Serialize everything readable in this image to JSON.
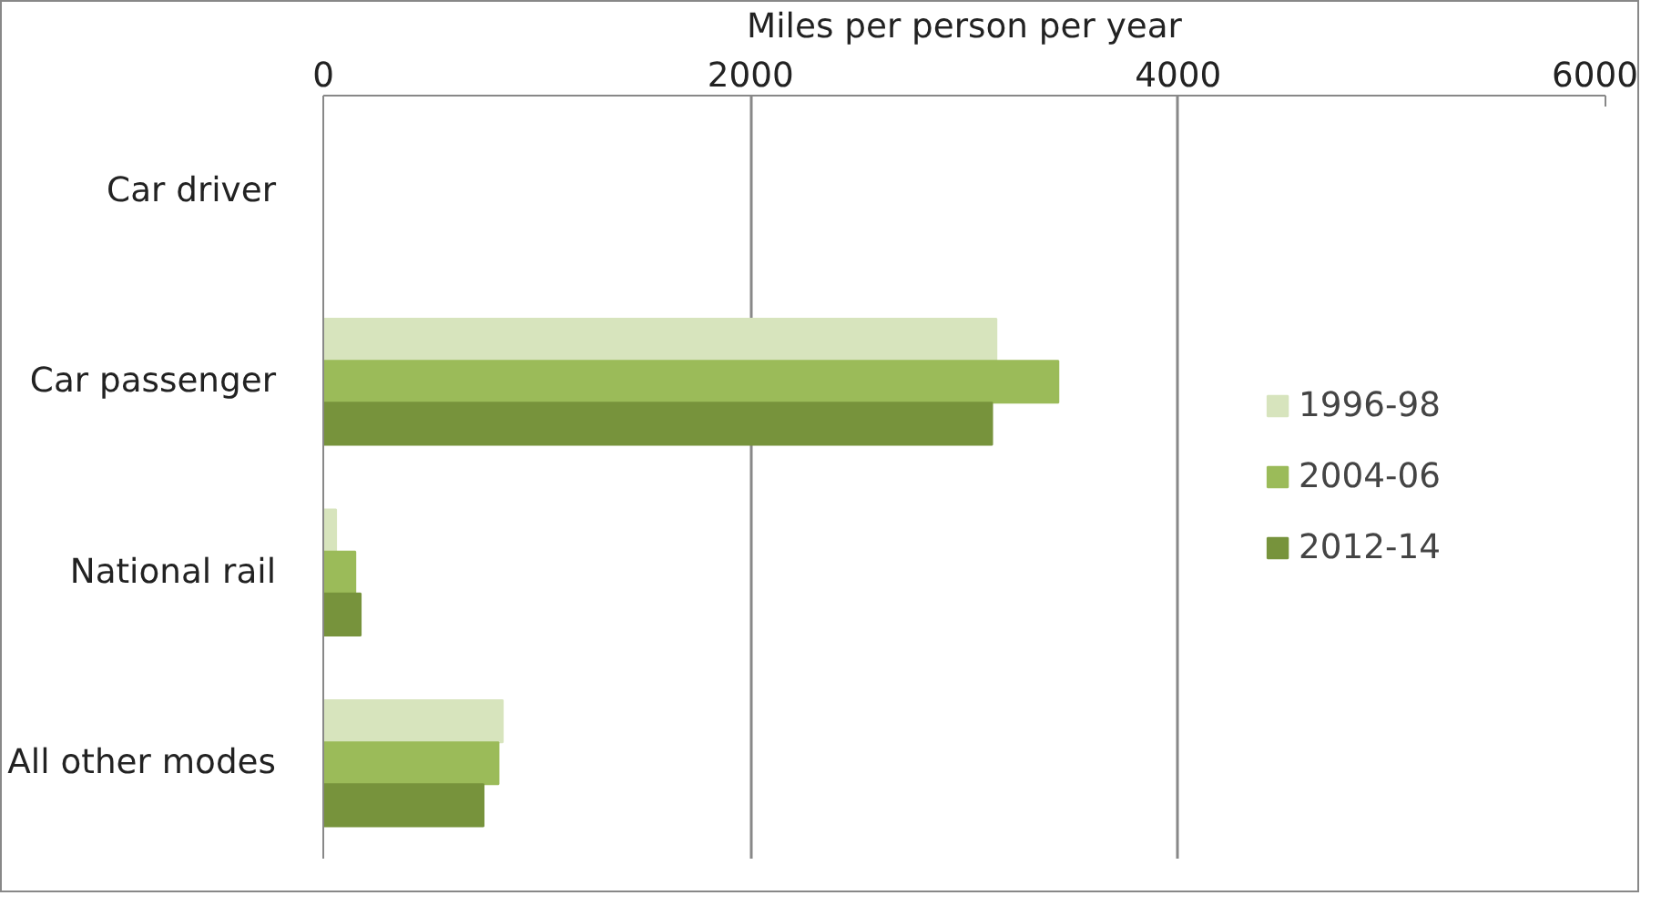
{
  "chart_data": {
    "type": "bar",
    "orientation": "horizontal",
    "xlabel": "Miles per person per year",
    "categories": [
      "Car driver",
      "Car passenger",
      "National rail",
      "All other modes"
    ],
    "series": [
      {
        "name": "1996-98",
        "color": "#d7e4bd",
        "values": [
          null,
          3150,
          60,
          840
        ]
      },
      {
        "name": "2004-06",
        "color": "#9bbb59",
        "values": [
          null,
          3440,
          150,
          820
        ]
      },
      {
        "name": "2012-14",
        "color": "#77933c",
        "values": [
          null,
          3130,
          175,
          750
        ]
      }
    ],
    "xlim": [
      0,
      6000
    ],
    "xticks": [
      0,
      2000,
      4000,
      6000
    ],
    "grid": "x",
    "legend": "right"
  }
}
